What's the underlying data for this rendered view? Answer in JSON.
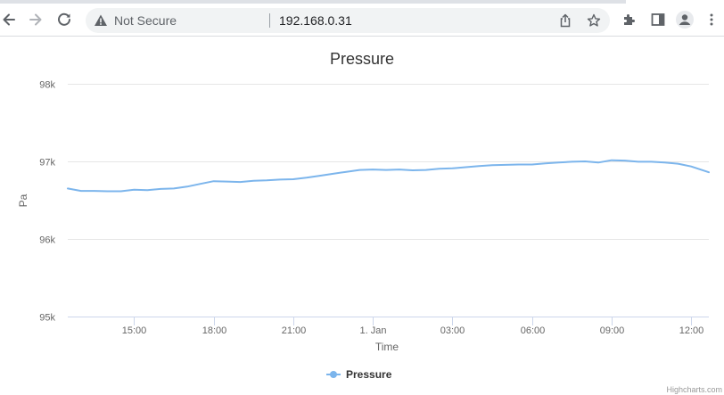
{
  "browser": {
    "security_label": "Not Secure",
    "url": "192.168.0.31",
    "icons": {
      "back": "back-arrow-icon",
      "forward": "forward-arrow-icon",
      "reload": "reload-icon",
      "warning": "warning-triangle-icon",
      "share": "share-icon",
      "bookmark": "star-icon",
      "extensions": "puzzle-icon",
      "side_panel": "side-panel-icon",
      "profile": "profile-icon",
      "menu": "kebab-menu-icon"
    }
  },
  "chart_data": {
    "type": "line",
    "title": "Pressure",
    "xlabel": "Time",
    "ylabel": "Pa",
    "ylim": [
      95000,
      98000
    ],
    "yticks": [
      95000,
      96000,
      97000,
      98000
    ],
    "ytick_labels": [
      "95k",
      "96k",
      "97k",
      "98k"
    ],
    "xlim": [
      "12:30",
      "12:40 (+1 day)"
    ],
    "xtick_labels": [
      "15:00",
      "18:00",
      "21:00",
      "1. Jan",
      "03:00",
      "06:00",
      "09:00",
      "12:00"
    ],
    "grid": true,
    "legend_position": "bottom-center",
    "series_color": "#7cb5ec",
    "series": [
      {
        "name": "Pressure",
        "x": [
          "12:30",
          "13:00",
          "13:30",
          "14:00",
          "14:30",
          "15:00",
          "15:30",
          "16:00",
          "16:30",
          "17:00",
          "17:30",
          "18:00",
          "18:30",
          "19:00",
          "19:30",
          "20:00",
          "20:30",
          "21:00",
          "21:30",
          "22:00",
          "22:30",
          "23:00",
          "23:30",
          "00:00",
          "00:30",
          "01:00",
          "01:30",
          "02:00",
          "02:30",
          "03:00",
          "03:30",
          "04:00",
          "04:30",
          "05:00",
          "05:30",
          "06:00",
          "06:30",
          "07:00",
          "07:30",
          "08:00",
          "08:30",
          "09:00",
          "09:30",
          "10:00",
          "10:30",
          "11:00",
          "11:30",
          "12:00",
          "12:40"
        ],
        "values": [
          96650,
          96620,
          96620,
          96615,
          96615,
          96635,
          96630,
          96645,
          96650,
          96675,
          96710,
          96745,
          96740,
          96735,
          96750,
          96755,
          96765,
          96770,
          96790,
          96815,
          96840,
          96865,
          96890,
          96895,
          96890,
          96895,
          96885,
          96890,
          96905,
          96910,
          96925,
          96940,
          96950,
          96955,
          96960,
          96960,
          96975,
          96985,
          96995,
          97000,
          96985,
          97015,
          97010,
          96995,
          96995,
          96985,
          96970,
          96935,
          96860
        ]
      }
    ]
  },
  "credits": "Highcharts.com"
}
